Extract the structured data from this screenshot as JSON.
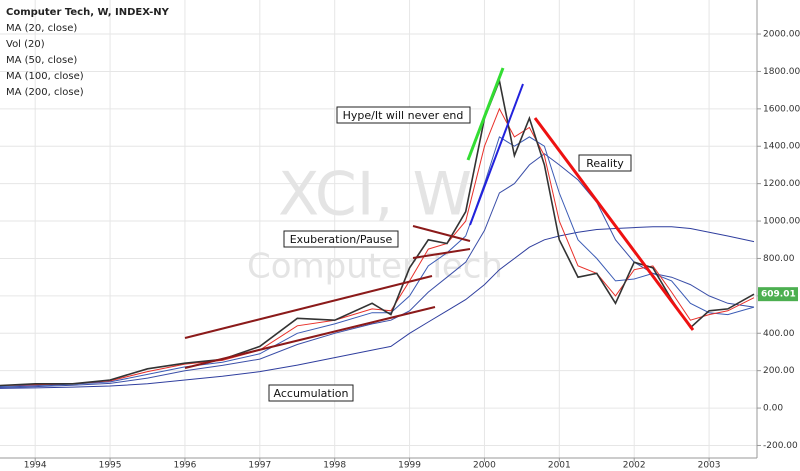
{
  "chart_data": {
    "type": "line",
    "title": "Computer Tech, W, INDEX-NY",
    "volume_label": "Vol (20)",
    "watermark": [
      "XCI, W",
      "Computer Tech"
    ],
    "annotations": [
      "Hype/It will never end",
      "Exuberation/Pause",
      "Reality",
      "Accumulation"
    ],
    "x": [
      1993.5,
      1994,
      1994.5,
      1995,
      1995.5,
      1996,
      1996.5,
      1997,
      1997.5,
      1998,
      1998.5,
      1998.75,
      1999,
      1999.25,
      1999.5,
      1999.75,
      2000,
      2000.2,
      2000.4,
      2000.6,
      2000.8,
      2001,
      2001.25,
      2001.5,
      2001.75,
      2002,
      2002.25,
      2002.5,
      2002.75,
      2003,
      2003.25,
      2003.6
    ],
    "series": [
      {
        "name": "Computer Tech",
        "color": "#333333",
        "values": [
          120,
          130,
          130,
          150,
          210,
          240,
          260,
          330,
          480,
          470,
          560,
          500,
          750,
          900,
          880,
          1050,
          1550,
          1750,
          1350,
          1550,
          1300,
          900,
          700,
          720,
          560,
          780,
          750,
          580,
          430,
          520,
          530,
          609.01
        ],
        "value_labels": [
          null,
          null,
          null,
          null,
          null,
          null,
          null,
          null,
          null,
          null,
          null,
          null,
          null,
          null,
          null,
          null,
          null,
          null,
          null,
          null,
          null,
          null,
          null,
          null,
          null,
          null,
          null,
          null,
          null,
          null,
          null,
          "609.01"
        ]
      },
      {
        "name": "MA (20, close)",
        "color": "#e8302a",
        "values": [
          120,
          125,
          130,
          145,
          195,
          235,
          255,
          310,
          440,
          470,
          530,
          520,
          680,
          850,
          880,
          1000,
          1400,
          1600,
          1450,
          1500,
          1350,
          1000,
          760,
          720,
          600,
          740,
          760,
          620,
          470,
          500,
          520,
          590
        ]
      },
      {
        "name": "MA (50, close)",
        "color": "#3b5bb5",
        "values": [
          115,
          120,
          128,
          140,
          180,
          220,
          245,
          290,
          400,
          450,
          510,
          510,
          600,
          760,
          830,
          920,
          1200,
          1450,
          1400,
          1450,
          1400,
          1150,
          900,
          800,
          680,
          690,
          720,
          680,
          560,
          510,
          500,
          540
        ]
      },
      {
        "name": "MA (100, close)",
        "color": "#3b4fa8",
        "values": [
          110,
          115,
          122,
          132,
          160,
          200,
          228,
          262,
          340,
          400,
          450,
          470,
          520,
          620,
          700,
          780,
          950,
          1150,
          1200,
          1300,
          1360,
          1300,
          1220,
          1100,
          900,
          780,
          720,
          700,
          660,
          600,
          560,
          540
        ]
      },
      {
        "name": "MA (200, close)",
        "color": "#2f3e9e",
        "values": [
          105,
          108,
          112,
          118,
          130,
          150,
          170,
          195,
          230,
          270,
          310,
          330,
          400,
          460,
          520,
          580,
          660,
          740,
          800,
          860,
          900,
          920,
          940,
          955,
          960,
          965,
          970,
          970,
          960,
          940,
          920,
          890
        ]
      }
    ],
    "xlim": [
      1993.53,
      2003.64
    ],
    "xticks": [
      1994,
      1995,
      1996,
      1997,
      1998,
      1999,
      2000,
      2001,
      2002,
      2003
    ],
    "ylim": [
      -267,
      2182
    ],
    "yticks": [
      {
        "value": -200,
        "label": "-200.00"
      },
      {
        "value": 0,
        "label": "0.00"
      },
      {
        "value": 200,
        "label": "200.00"
      },
      {
        "value": 400,
        "label": "400.00"
      },
      {
        "value": 600,
        "label": "600.00"
      },
      {
        "value": 800,
        "label": "800.00"
      },
      {
        "value": 1000,
        "label": "1000.00"
      },
      {
        "value": 1200,
        "label": "1200.00"
      },
      {
        "value": 1400,
        "label": "1400.00"
      },
      {
        "value": 1600,
        "label": "1600.00"
      },
      {
        "value": 1800,
        "label": "1800.00"
      },
      {
        "value": 2000,
        "label": "2000.00"
      }
    ],
    "grid": true,
    "badge_color": "#4caf50"
  }
}
